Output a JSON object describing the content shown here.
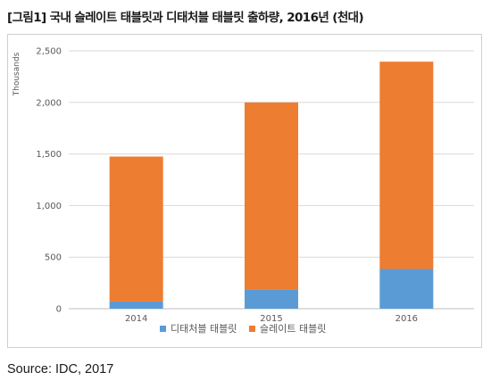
{
  "title": "[그림1] 국내 슬레이트 태블릿과 디태처블 태블릿 출하량, 2016년 (천대)",
  "source": "Source: IDC, 2017",
  "chart_data": {
    "type": "bar",
    "stacked": true,
    "categories": [
      "2014",
      "2015",
      "2016"
    ],
    "series": [
      {
        "name": "디태처블 태블릿",
        "color": "#5b9bd5",
        "values": [
          70,
          185,
          385
        ]
      },
      {
        "name": "슬레이트 태블릿",
        "color": "#ed7d31",
        "values": [
          1405,
          1815,
          2010
        ]
      }
    ],
    "ylabel": "Thousands",
    "ylim": [
      0,
      2500
    ],
    "yticks": [
      0,
      500,
      1000,
      1500,
      2000,
      2500
    ],
    "ytick_labels": [
      "0",
      "500",
      "1,000",
      "1,500",
      "2,000",
      "2,500"
    ],
    "grid": true,
    "legend": "bottom"
  }
}
